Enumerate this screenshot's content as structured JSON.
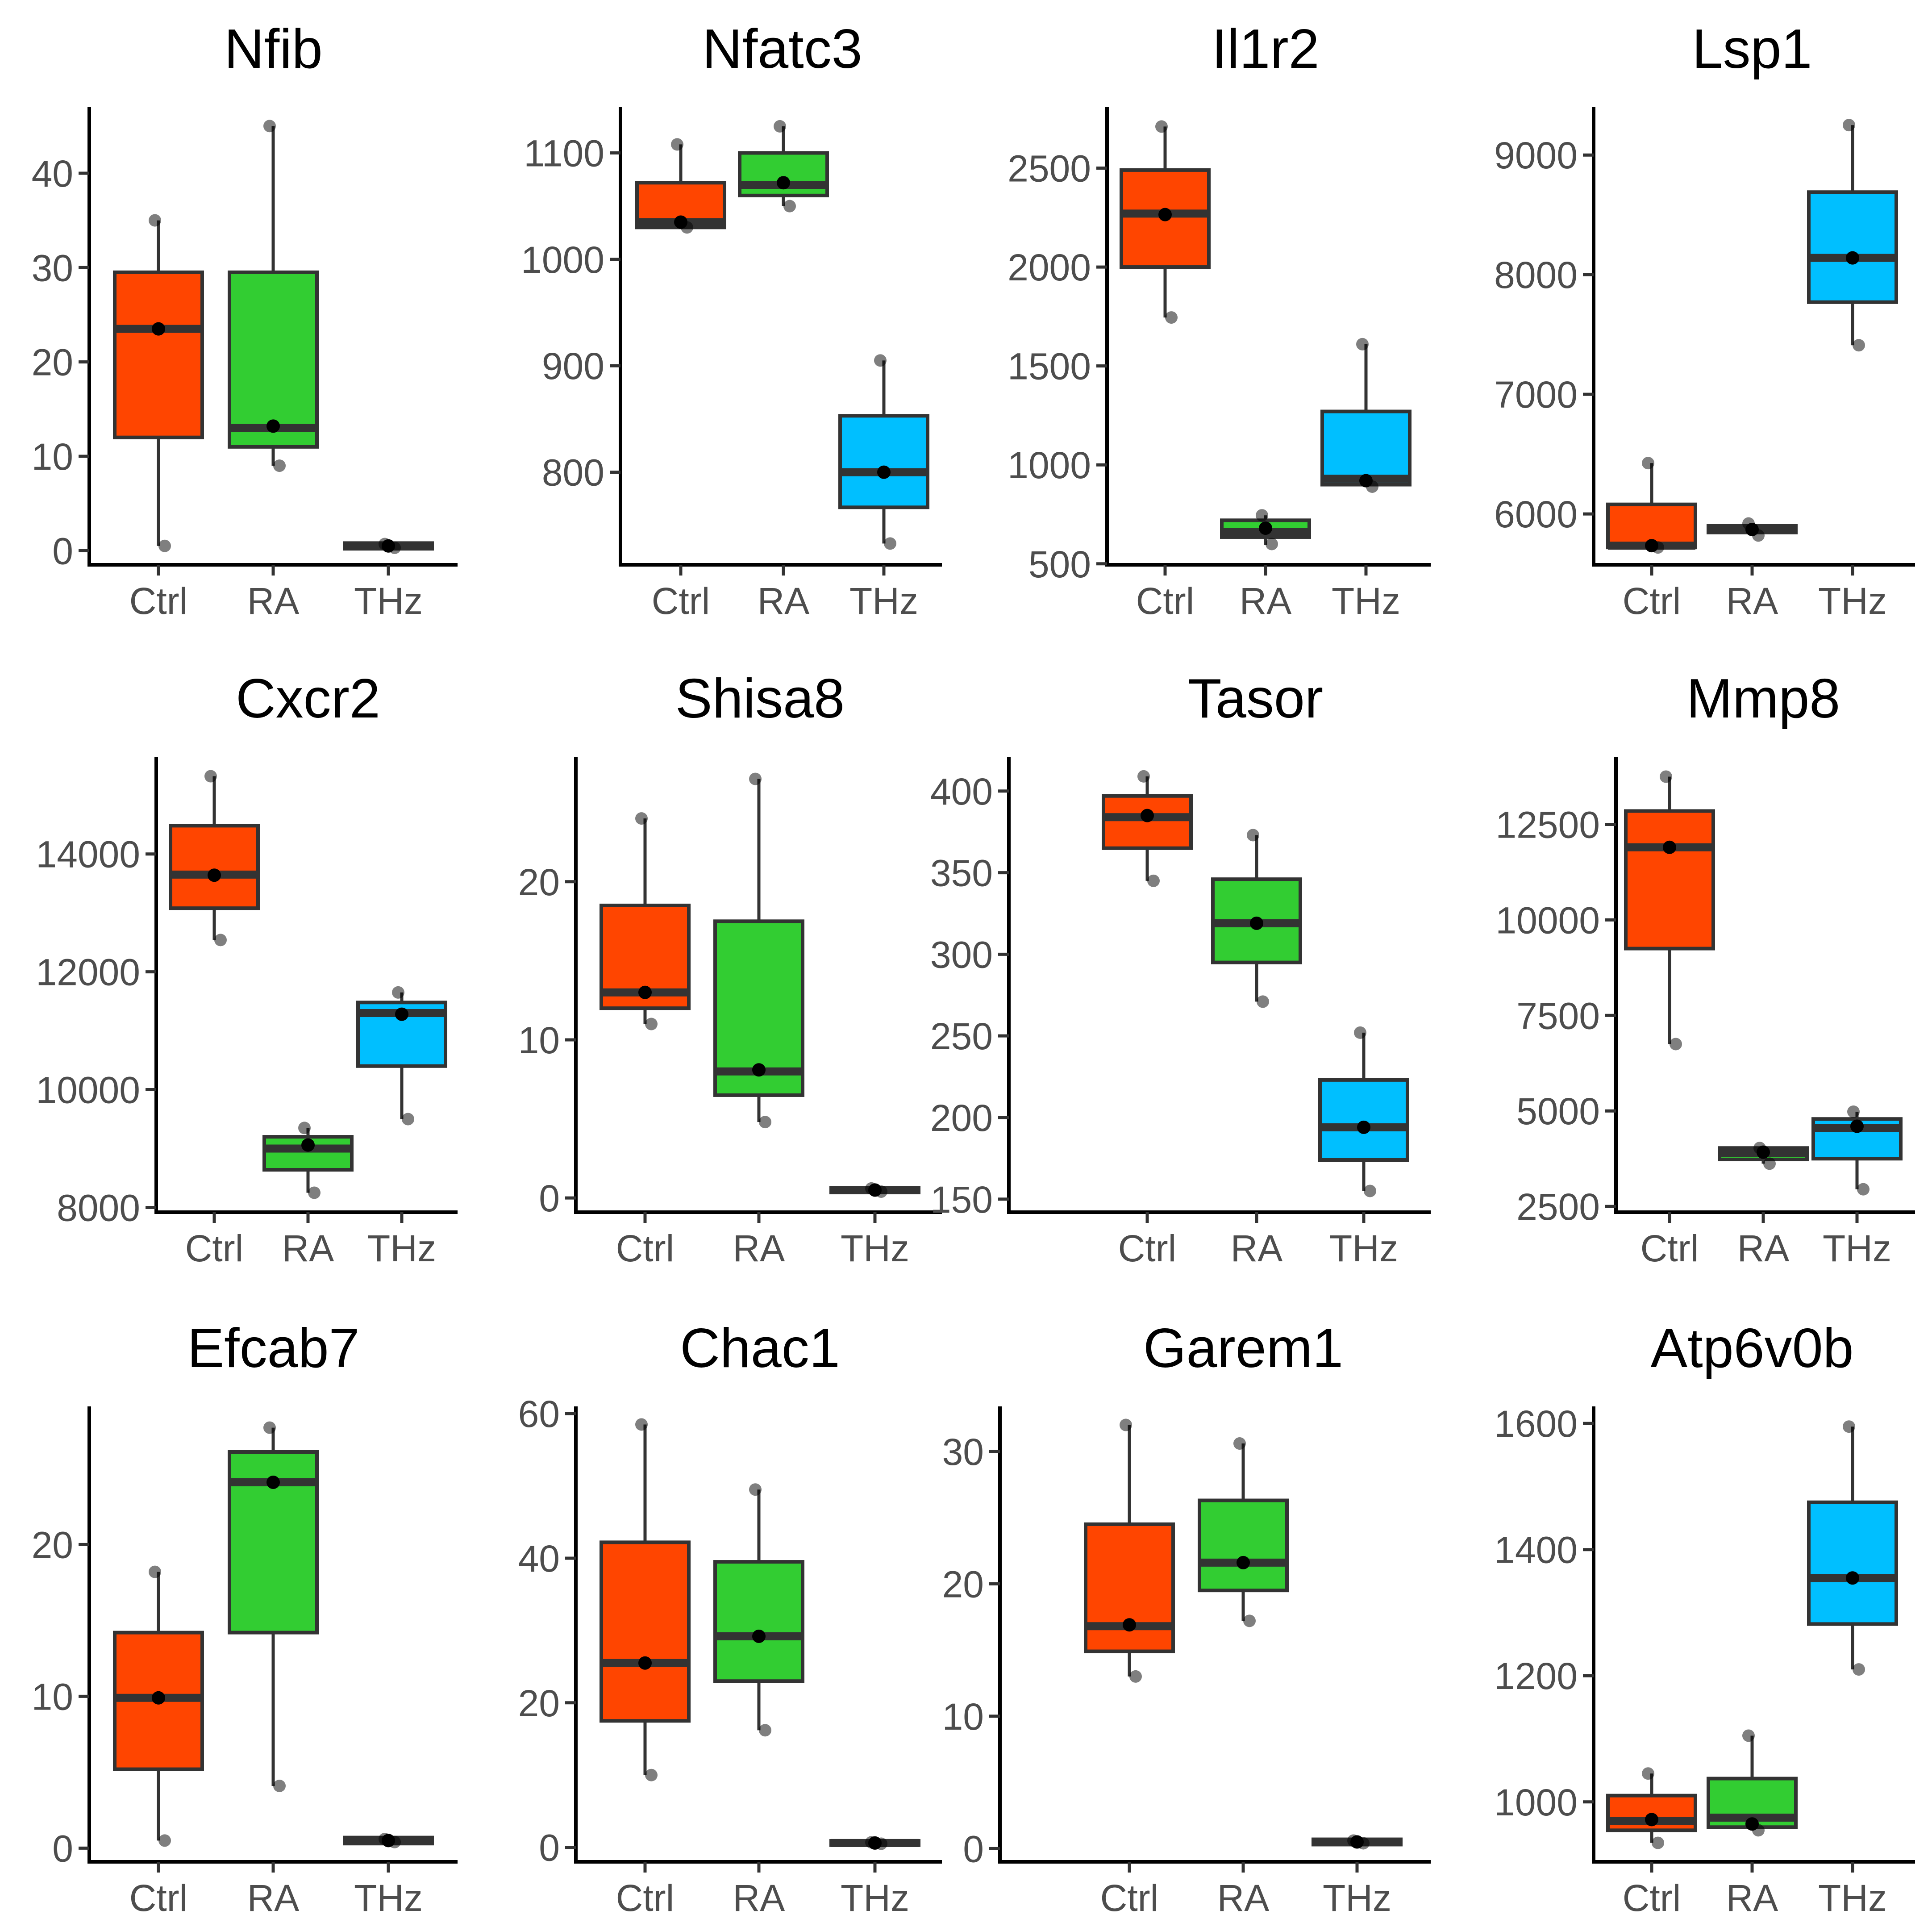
{
  "colors": {
    "Ctrl": "#ff4500",
    "RA": "#32cd32",
    "THz": "#00bfff"
  },
  "chart_data": [
    {
      "type": "box",
      "title": "Nfib",
      "categories": [
        "Ctrl",
        "RA",
        "THz"
      ],
      "ylim": [
        -1.5,
        47
      ],
      "yticks": [
        0,
        10,
        20,
        30,
        40
      ],
      "ytick_labels": [
        "0",
        "10",
        "20",
        "30",
        "40"
      ],
      "groups": [
        {
          "name": "Ctrl",
          "q1": 12,
          "median": 23.5,
          "q3": 29.5,
          "min": 0.5,
          "max": 35,
          "points": [
            0.5,
            23.5,
            35
          ]
        },
        {
          "name": "RA",
          "q1": 11,
          "median": 13,
          "q3": 29.5,
          "min": 9,
          "max": 45,
          "points": [
            9,
            13.2,
            45
          ]
        },
        {
          "name": "THz",
          "q1": 0.2,
          "median": 0.5,
          "q3": 0.8,
          "min": 0.2,
          "max": 0.8,
          "points": [
            0.3,
            0.5,
            0.7
          ]
        }
      ]
    },
    {
      "type": "box",
      "title": "Nfatc3",
      "categories": [
        "Ctrl",
        "RA",
        "THz"
      ],
      "ylim": [
        713,
        1143
      ],
      "yticks": [
        800,
        900,
        1000,
        1100
      ],
      "ytick_labels": [
        "800",
        "900",
        "1000",
        "1100"
      ],
      "groups": [
        {
          "name": "Ctrl",
          "q1": 1030,
          "median": 1035,
          "q3": 1072,
          "min": 1030,
          "max": 1108,
          "points": [
            1030,
            1035,
            1108
          ]
        },
        {
          "name": "RA",
          "q1": 1060,
          "median": 1070,
          "q3": 1100,
          "min": 1050,
          "max": 1125,
          "points": [
            1050,
            1072,
            1125
          ]
        },
        {
          "name": "THz",
          "q1": 767,
          "median": 800,
          "q3": 853,
          "min": 733,
          "max": 905,
          "points": [
            733,
            800,
            905
          ]
        }
      ]
    },
    {
      "type": "box",
      "title": "Il1r2",
      "categories": [
        "Ctrl",
        "RA",
        "THz"
      ],
      "ylim": [
        495,
        2808
      ],
      "yticks": [
        500,
        1000,
        1500,
        2000,
        2500
      ],
      "ytick_labels": [
        "500",
        "1000",
        "1500",
        "2000",
        "2500"
      ],
      "groups": [
        {
          "name": "Ctrl",
          "q1": 2000,
          "median": 2270,
          "q3": 2490,
          "min": 1745,
          "max": 2710,
          "points": [
            1745,
            2265,
            2710
          ]
        },
        {
          "name": "RA",
          "q1": 635,
          "median": 660,
          "q3": 720,
          "min": 595,
          "max": 745,
          "points": [
            600,
            680,
            745
          ]
        },
        {
          "name": "THz",
          "q1": 900,
          "median": 930,
          "q3": 1270,
          "min": 890,
          "max": 1610,
          "points": [
            890,
            920,
            1610
          ]
        }
      ]
    },
    {
      "type": "box",
      "title": "Lsp1",
      "categories": [
        "Ctrl",
        "RA",
        "THz"
      ],
      "ylim": [
        5575,
        9400
      ],
      "yticks": [
        6000,
        7000,
        8000,
        9000
      ],
      "ytick_labels": [
        "6000",
        "7000",
        "8000",
        "9000"
      ],
      "groups": [
        {
          "name": "Ctrl",
          "q1": 5720,
          "median": 5735,
          "q3": 6080,
          "min": 5720,
          "max": 6425,
          "points": [
            5720,
            5735,
            6425
          ]
        },
        {
          "name": "RA",
          "q1": 5845,
          "median": 5870,
          "q3": 5900,
          "min": 5820,
          "max": 5920,
          "points": [
            5820,
            5870,
            5920
          ]
        },
        {
          "name": "THz",
          "q1": 7770,
          "median": 8140,
          "q3": 8690,
          "min": 7410,
          "max": 9250,
          "points": [
            7410,
            8140,
            9250
          ]
        }
      ]
    },
    {
      "type": "box",
      "title": "Cxcr2",
      "categories": [
        "Ctrl",
        "RA",
        "THz"
      ],
      "ylim": [
        7920,
        15650
      ],
      "yticks": [
        8000,
        10000,
        12000,
        14000
      ],
      "ytick_labels": [
        "8000",
        "10000",
        "12000",
        "14000"
      ],
      "groups": [
        {
          "name": "Ctrl",
          "q1": 13080,
          "median": 13650,
          "q3": 14480,
          "min": 12540,
          "max": 15320,
          "points": [
            12540,
            13640,
            15320
          ]
        },
        {
          "name": "RA",
          "q1": 8640,
          "median": 9000,
          "q3": 9200,
          "min": 8250,
          "max": 9350,
          "points": [
            8250,
            9060,
            9350
          ]
        },
        {
          "name": "THz",
          "q1": 10400,
          "median": 11300,
          "q3": 11480,
          "min": 9500,
          "max": 11650,
          "points": [
            9500,
            11280,
            11650
          ]
        }
      ]
    },
    {
      "type": "box",
      "title": "Shisa8",
      "categories": [
        "Ctrl",
        "RA",
        "THz"
      ],
      "ylim": [
        -0.9,
        27.9
      ],
      "yticks": [
        0,
        10,
        20
      ],
      "ytick_labels": [
        "0",
        "10",
        "20"
      ],
      "groups": [
        {
          "name": "Ctrl",
          "q1": 12,
          "median": 13,
          "q3": 18.5,
          "min": 11,
          "max": 24,
          "points": [
            11,
            13,
            24
          ]
        },
        {
          "name": "RA",
          "q1": 6.5,
          "median": 8,
          "q3": 17.5,
          "min": 4.8,
          "max": 26.5,
          "points": [
            4.8,
            8.1,
            26.5
          ]
        },
        {
          "name": "THz",
          "q1": 0.35,
          "median": 0.5,
          "q3": 0.65,
          "min": 0.3,
          "max": 0.7,
          "points": [
            0.4,
            0.5,
            0.6
          ]
        }
      ]
    },
    {
      "type": "box",
      "title": "Tasor",
      "categories": [
        "Ctrl",
        "RA",
        "THz"
      ],
      "ylim": [
        142,
        421
      ],
      "yticks": [
        150,
        200,
        250,
        300,
        350,
        400
      ],
      "ytick_labels": [
        "150",
        "200",
        "250",
        "300",
        "350",
        "400"
      ],
      "groups": [
        {
          "name": "Ctrl",
          "q1": 365,
          "median": 384,
          "q3": 397,
          "min": 345,
          "max": 409,
          "points": [
            345,
            385,
            409
          ]
        },
        {
          "name": "RA",
          "q1": 295,
          "median": 319,
          "q3": 346,
          "min": 271,
          "max": 373,
          "points": [
            271,
            319,
            373
          ]
        },
        {
          "name": "THz",
          "q1": 174,
          "median": 194,
          "q3": 223,
          "min": 155,
          "max": 252,
          "points": [
            155,
            194,
            252
          ]
        }
      ]
    },
    {
      "type": "box",
      "title": "Mmp8",
      "categories": [
        "Ctrl",
        "RA",
        "THz"
      ],
      "ylim": [
        2350,
        14270
      ],
      "yticks": [
        2500,
        5000,
        7500,
        10000,
        12500
      ],
      "ytick_labels": [
        "2500",
        "5000",
        "7500",
        "10000",
        "12500"
      ],
      "groups": [
        {
          "name": "Ctrl",
          "q1": 9250,
          "median": 11900,
          "q3": 12850,
          "min": 6750,
          "max": 13750,
          "points": [
            6750,
            11900,
            13750
          ]
        },
        {
          "name": "RA",
          "q1": 3730,
          "median": 3900,
          "q3": 4030,
          "min": 3620,
          "max": 4030,
          "points": [
            3620,
            3920,
            4030
          ]
        },
        {
          "name": "THz",
          "q1": 3750,
          "median": 4550,
          "q3": 4790,
          "min": 2950,
          "max": 4980,
          "points": [
            2950,
            4600,
            4980
          ]
        }
      ]
    },
    {
      "type": "box",
      "title": "Efcab7",
      "categories": [
        "Ctrl",
        "RA",
        "THz"
      ],
      "ylim": [
        -0.9,
        29.1
      ],
      "yticks": [
        0,
        10,
        20
      ],
      "ytick_labels": [
        "0",
        "10",
        "20"
      ],
      "groups": [
        {
          "name": "Ctrl",
          "q1": 5.2,
          "median": 9.9,
          "q3": 14.2,
          "min": 0.5,
          "max": 18.2,
          "points": [
            0.5,
            9.9,
            18.2
          ]
        },
        {
          "name": "RA",
          "q1": 14.2,
          "median": 24.1,
          "q3": 26.1,
          "min": 4.1,
          "max": 27.7,
          "points": [
            4.1,
            24.1,
            27.7
          ]
        },
        {
          "name": "THz",
          "q1": 0.3,
          "median": 0.5,
          "q3": 0.7,
          "min": 0.3,
          "max": 0.7,
          "points": [
            0.4,
            0.5,
            0.6
          ]
        }
      ]
    },
    {
      "type": "box",
      "title": "Chac1",
      "categories": [
        "Ctrl",
        "RA",
        "THz"
      ],
      "ylim": [
        -2,
        61
      ],
      "yticks": [
        0,
        20,
        40,
        60
      ],
      "ytick_labels": [
        "0",
        "20",
        "40",
        "60"
      ],
      "groups": [
        {
          "name": "Ctrl",
          "q1": 17.5,
          "median": 25.5,
          "q3": 42.2,
          "min": 10,
          "max": 58.5,
          "points": [
            10,
            25.5,
            58.5
          ]
        },
        {
          "name": "RA",
          "q1": 23,
          "median": 29.2,
          "q3": 39.5,
          "min": 16.2,
          "max": 49.5,
          "points": [
            16.2,
            29.2,
            49.5
          ]
        },
        {
          "name": "THz",
          "q1": 0.3,
          "median": 0.6,
          "q3": 0.9,
          "min": 0.3,
          "max": 0.9,
          "points": [
            0.5,
            0.6,
            0.7
          ]
        }
      ]
    },
    {
      "type": "box",
      "title": "Garem1",
      "categories": [
        "Ctrl",
        "RA",
        "THz"
      ],
      "ylim": [
        -1,
        33.4
      ],
      "yticks": [
        0,
        10,
        20,
        30
      ],
      "ytick_labels": [
        "0",
        "10",
        "20",
        "30"
      ],
      "groups": [
        {
          "name": "Ctrl",
          "q1": 14.9,
          "median": 16.8,
          "q3": 24.5,
          "min": 13,
          "max": 32,
          "points": [
            13,
            16.9,
            32
          ]
        },
        {
          "name": "RA",
          "q1": 19.5,
          "median": 21.6,
          "q3": 26.3,
          "min": 17.2,
          "max": 30.6,
          "points": [
            17.2,
            21.6,
            30.6
          ]
        },
        {
          "name": "THz",
          "q1": 0.3,
          "median": 0.5,
          "q3": 0.7,
          "min": 0.3,
          "max": 0.7,
          "points": [
            0.4,
            0.5,
            0.6
          ]
        }
      ]
    },
    {
      "type": "box",
      "title": "Atp6v0b",
      "categories": [
        "Ctrl",
        "RA",
        "THz"
      ],
      "ylim": [
        905,
        1627
      ],
      "yticks": [
        1000,
        1200,
        1400,
        1600
      ],
      "ytick_labels": [
        "1000",
        "1200",
        "1400",
        "1600"
      ],
      "groups": [
        {
          "name": "Ctrl",
          "q1": 955,
          "median": 970,
          "q3": 1010,
          "min": 935,
          "max": 1045,
          "points": [
            935,
            972,
            1045
          ]
        },
        {
          "name": "RA",
          "q1": 960,
          "median": 975,
          "q3": 1037,
          "min": 955,
          "max": 1105,
          "points": [
            955,
            965,
            1105
          ]
        },
        {
          "name": "THz",
          "q1": 1282,
          "median": 1355,
          "q3": 1475,
          "min": 1210,
          "max": 1595,
          "points": [
            1210,
            1355,
            1595
          ]
        }
      ]
    }
  ]
}
